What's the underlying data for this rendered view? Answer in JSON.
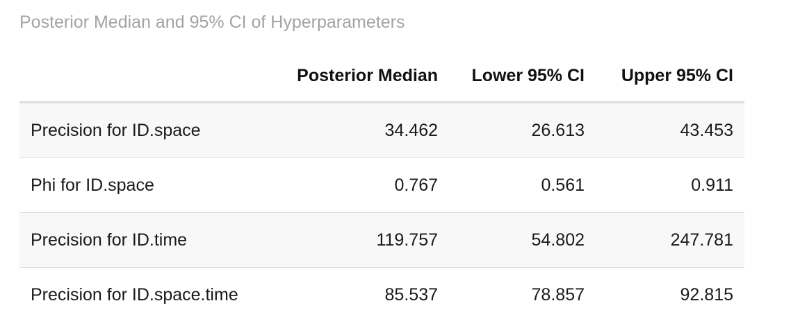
{
  "caption": "Posterior Median and 95% CI of Hyperparameters",
  "columns": {
    "label": "",
    "median": "Posterior Median",
    "lower": "Lower 95% CI",
    "upper": "Upper 95% CI"
  },
  "rows": [
    {
      "label": "Precision for ID.space",
      "median": "34.462",
      "lower": "26.613",
      "upper": "43.453"
    },
    {
      "label": "Phi for ID.space",
      "median": "0.767",
      "lower": "0.561",
      "upper": "0.911"
    },
    {
      "label": "Precision for ID.time",
      "median": "119.757",
      "lower": "54.802",
      "upper": "247.781"
    },
    {
      "label": "Precision for ID.space.time",
      "median": "85.537",
      "lower": "78.857",
      "upper": "92.815"
    }
  ],
  "colors": {
    "caption": "#a3a3a3",
    "stripe": "#f8f8f8",
    "rule": "#dddddd"
  }
}
